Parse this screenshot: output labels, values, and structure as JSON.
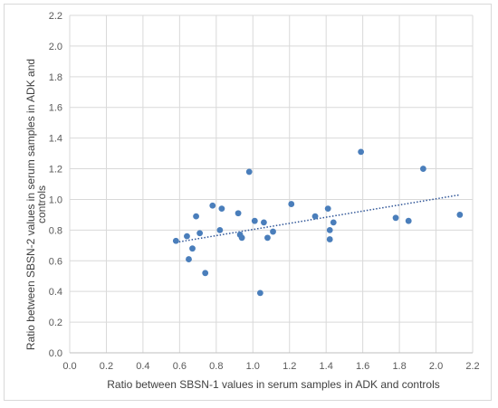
{
  "chart_data": {
    "type": "scatter",
    "xlabel": "Ratio between SBSN-1 values in serum samples in ADK and controls",
    "ylabel_lines": [
      "Ratio between SBSN-2 values in serum samples in ADK and",
      "controls"
    ],
    "xlim": [
      0.0,
      2.2
    ],
    "ylim": [
      0.0,
      2.2
    ],
    "x_ticks": [
      "0.0",
      "0.2",
      "0.4",
      "0.6",
      "0.8",
      "1.0",
      "1.2",
      "1.4",
      "1.6",
      "1.8",
      "2.0",
      "2.2"
    ],
    "y_ticks": [
      "0.0",
      "0.2",
      "0.4",
      "0.6",
      "0.8",
      "1.0",
      "1.2",
      "1.4",
      "1.6",
      "1.8",
      "2.0",
      "2.2"
    ],
    "grid": "vertical and horizontal major gridlines",
    "legend": "none",
    "marker_color": "#4a7ebb",
    "trendline": {
      "type": "linear",
      "style": "dotted",
      "color": "#2f5597",
      "x": [
        0.58,
        2.13
      ],
      "y": [
        0.72,
        1.03
      ]
    },
    "points": [
      {
        "x": 0.58,
        "y": 0.73
      },
      {
        "x": 0.64,
        "y": 0.76
      },
      {
        "x": 0.65,
        "y": 0.61
      },
      {
        "x": 0.67,
        "y": 0.68
      },
      {
        "x": 0.69,
        "y": 0.89
      },
      {
        "x": 0.71,
        "y": 0.78
      },
      {
        "x": 0.74,
        "y": 0.52
      },
      {
        "x": 0.78,
        "y": 0.96
      },
      {
        "x": 0.82,
        "y": 0.8
      },
      {
        "x": 0.83,
        "y": 0.94
      },
      {
        "x": 0.92,
        "y": 0.91
      },
      {
        "x": 0.93,
        "y": 0.77
      },
      {
        "x": 0.94,
        "y": 0.75
      },
      {
        "x": 0.98,
        "y": 1.18
      },
      {
        "x": 1.01,
        "y": 0.86
      },
      {
        "x": 1.04,
        "y": 0.39
      },
      {
        "x": 1.06,
        "y": 0.85
      },
      {
        "x": 1.08,
        "y": 0.75
      },
      {
        "x": 1.11,
        "y": 0.79
      },
      {
        "x": 1.21,
        "y": 0.97
      },
      {
        "x": 1.34,
        "y": 0.89
      },
      {
        "x": 1.41,
        "y": 0.94
      },
      {
        "x": 1.42,
        "y": 0.8
      },
      {
        "x": 1.42,
        "y": 0.74
      },
      {
        "x": 1.44,
        "y": 0.85
      },
      {
        "x": 1.59,
        "y": 1.31
      },
      {
        "x": 1.78,
        "y": 0.88
      },
      {
        "x": 1.85,
        "y": 0.86
      },
      {
        "x": 1.93,
        "y": 1.2
      },
      {
        "x": 2.13,
        "y": 0.9
      }
    ]
  }
}
